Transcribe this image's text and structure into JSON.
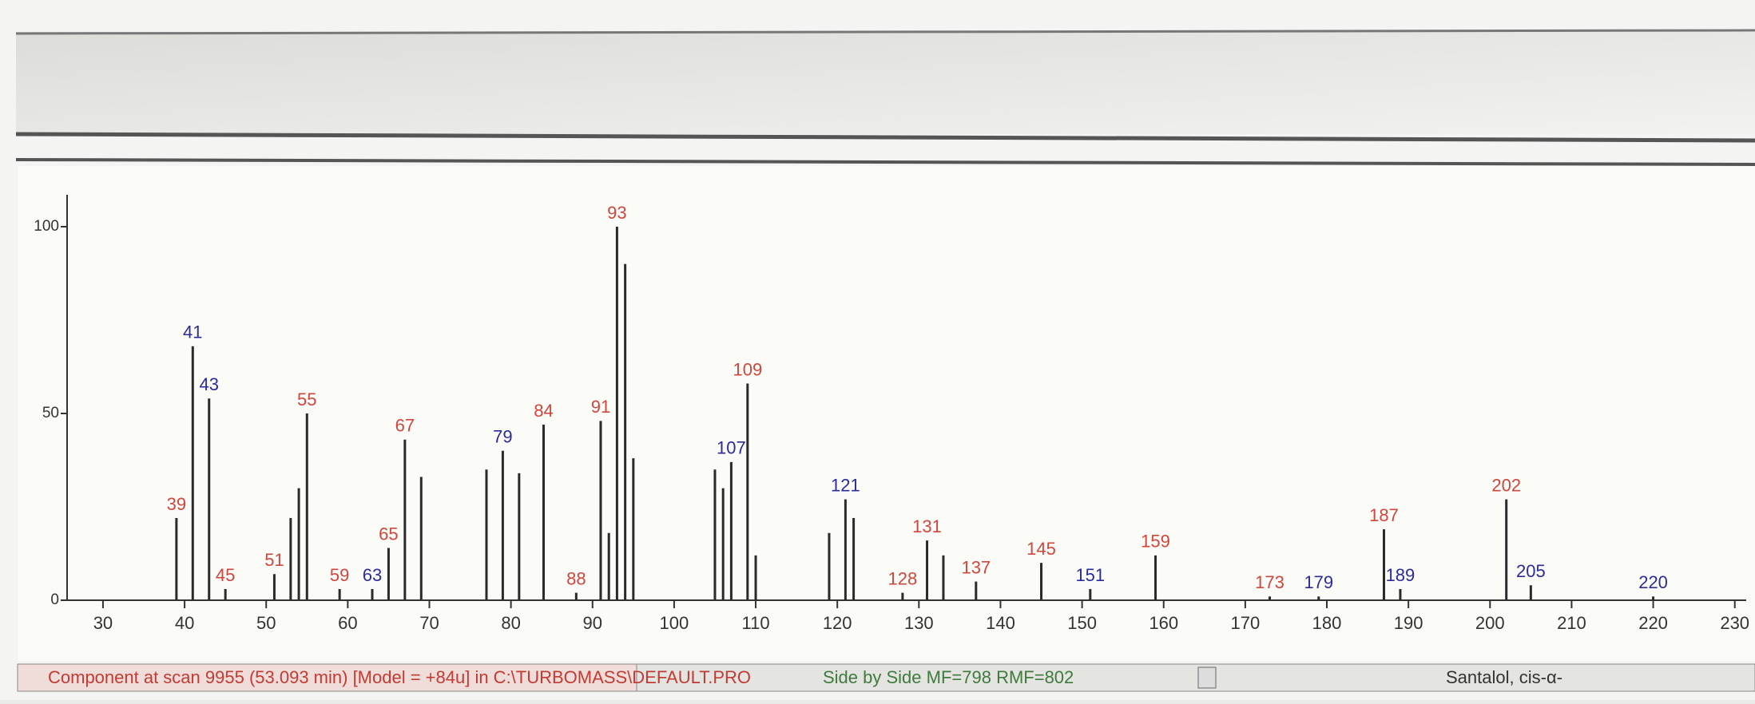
{
  "chart_data": {
    "type": "stick",
    "xlim": [
      25.6,
      231.4
    ],
    "ylim": [
      0,
      100
    ],
    "xticks": [
      30,
      40,
      50,
      60,
      70,
      80,
      90,
      100,
      110,
      120,
      130,
      140,
      150,
      160,
      170,
      180,
      190,
      200,
      210,
      220,
      230
    ],
    "yticks": [
      0,
      50,
      100
    ],
    "series": [
      {
        "color": "#2a2a2a",
        "x": [
          39,
          41,
          43,
          45,
          51,
          53,
          54,
          55,
          59,
          63,
          65,
          67,
          69,
          77,
          79,
          81,
          84,
          88,
          91,
          92,
          93,
          94,
          95,
          105,
          106,
          107,
          109,
          110,
          119,
          121,
          122,
          128,
          131,
          133,
          137,
          145,
          151,
          159,
          173,
          179,
          187,
          189,
          202,
          205,
          220
        ],
        "values": [
          22,
          68,
          54,
          3,
          7,
          22,
          30,
          50,
          3,
          3,
          14,
          43,
          33,
          35,
          40,
          34,
          47,
          2,
          48,
          18,
          100,
          90,
          38,
          35,
          30,
          37,
          58,
          12,
          18,
          27,
          22,
          2,
          16,
          12,
          5,
          10,
          3,
          12,
          1,
          1,
          19,
          3,
          27,
          4,
          1
        ],
        "label_colors": [
          "#d0463c",
          "#2b2b9a",
          "#2b2b9a",
          "#d0463c",
          "#d0463c",
          null,
          null,
          "#d0463c",
          "#d0463c",
          "#2b2b9a",
          "#d0463c",
          "#d0463c",
          null,
          null,
          "#2b2b9a",
          null,
          "#d0463c",
          "#d0463c",
          "#d0463c",
          null,
          "#d0463c",
          null,
          null,
          null,
          null,
          "#2b2b9a",
          "#d0463c",
          null,
          null,
          "#2b2b9a",
          null,
          "#d0463c",
          "#d0463c",
          null,
          "#d0463c",
          "#d0463c",
          "#2b2b9a",
          "#d0463c",
          "#d0463c",
          "#2b2b9a",
          "#d0463c",
          "#2b2b9a",
          "#d0463c",
          "#2b2b9a",
          "#2b2b9a"
        ]
      }
    ]
  },
  "status": {
    "left": "Component at scan 9955 (53.093 min) [Model = +84u] in C:\\TURBOMASS\\DEFAULT.PRO",
    "middle": "Side by Side MF=798 RMF=802",
    "right": "Santalol, cis-α-"
  }
}
